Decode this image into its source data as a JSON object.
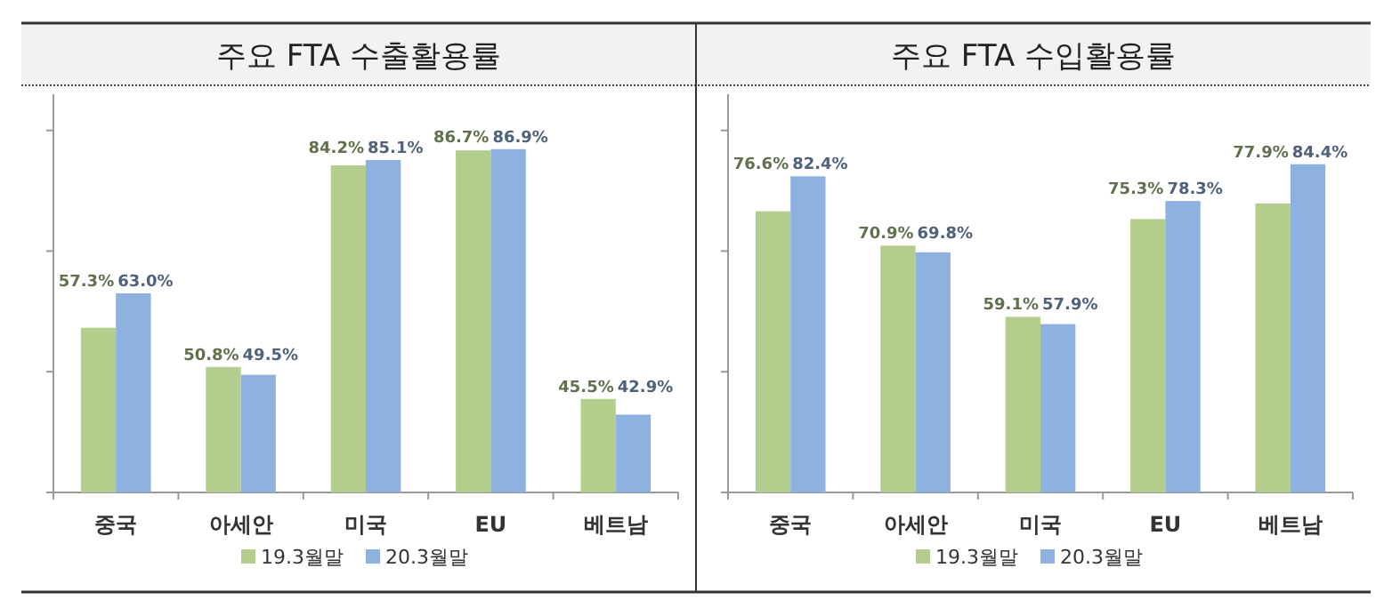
{
  "chart_data": [
    {
      "type": "bar",
      "title": "주요 FTA 수출활용률",
      "categories": [
        "중국",
        "아세안",
        "미국",
        "EU",
        "베트남"
      ],
      "ylim": [
        30,
        96
      ],
      "yticks": [
        {
          "value": 30,
          "label": null
        },
        {
          "value": 50,
          "label": null
        },
        {
          "value": 70,
          "label": null
        },
        {
          "value": 90,
          "label": null
        }
      ],
      "grid": false,
      "legend": "bottom",
      "series": [
        {
          "name": "19.3월말",
          "color": "#b3cd8c",
          "values": [
            57.3,
            50.8,
            84.2,
            86.7,
            45.5
          ],
          "value_labels": [
            "57.3%",
            "50.8%",
            "84.2%",
            "86.7%",
            "45.5%"
          ]
        },
        {
          "name": "20.3월말",
          "color": "#8db2e0",
          "values": [
            63.0,
            49.5,
            85.1,
            86.9,
            42.9
          ],
          "value_labels": [
            "63.0%",
            "49.5%",
            "85.1%",
            "86.9%",
            "42.9%"
          ]
        }
      ]
    },
    {
      "type": "bar",
      "title": "주요 FTA 수입활용률",
      "categories": [
        "중국",
        "아세안",
        "미국",
        "EU",
        "베트남"
      ],
      "ylim": [
        30,
        96
      ],
      "yticks": [
        {
          "value": 30,
          "label": null
        },
        {
          "value": 50,
          "label": null
        },
        {
          "value": 70,
          "label": null
        },
        {
          "value": 90,
          "label": null
        }
      ],
      "grid": false,
      "legend": "bottom",
      "series": [
        {
          "name": "19.3월말",
          "color": "#b3cd8c",
          "values": [
            76.6,
            70.9,
            59.1,
            75.3,
            77.9
          ],
          "value_labels": [
            "76.6%",
            "70.9%",
            "59.1%",
            "75.3%",
            "77.9%"
          ]
        },
        {
          "name": "20.3월말",
          "color": "#8db2e0",
          "values": [
            82.4,
            69.8,
            57.9,
            78.3,
            84.4
          ],
          "value_labels": [
            "82.4%",
            "69.8%",
            "57.9%",
            "78.3%",
            "84.4%"
          ]
        }
      ]
    }
  ]
}
